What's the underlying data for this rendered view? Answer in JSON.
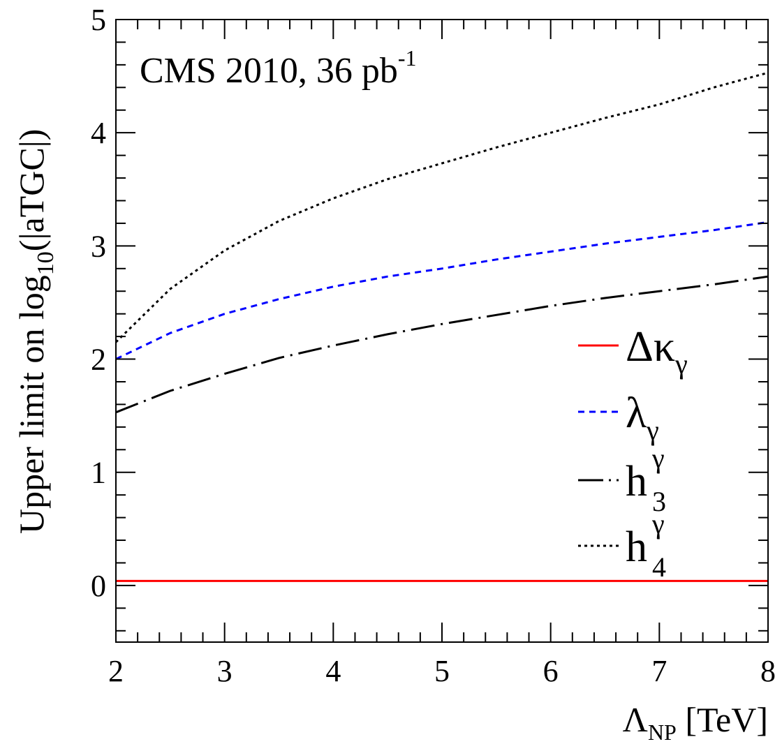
{
  "chart_data": {
    "type": "line",
    "annotation": {
      "main": "CMS 2010, 36 pb",
      "superscript": "-1"
    },
    "xlabel": {
      "main": "Λ",
      "sub": "NP",
      "unit": " [TeV]"
    },
    "ylabel": {
      "main": "Upper limit on log",
      "sub": "10",
      "rest": "(|aTGC|)"
    },
    "xlim": [
      2,
      8
    ],
    "ylim": [
      -0.5,
      5
    ],
    "x_ticks": [
      "2",
      "3",
      "4",
      "5",
      "6",
      "7",
      "8"
    ],
    "y_ticks": [
      "0",
      "1",
      "2",
      "3",
      "4",
      "5"
    ],
    "grid": false,
    "legend_position": "right",
    "series": [
      {
        "name": "Δκγ",
        "legend": {
          "main": "Δκ",
          "sub": "γ",
          "sup": ""
        },
        "color": "#ff0000",
        "style": "solid",
        "x": [
          2,
          8
        ],
        "y": [
          0.04,
          0.04
        ]
      },
      {
        "name": "λγ",
        "legend": {
          "main": "λ",
          "sub": "γ",
          "sup": ""
        },
        "color": "#0000ff",
        "style": "dashed",
        "x": [
          2,
          2.5,
          3,
          3.5,
          4,
          4.5,
          5,
          5.5,
          6,
          6.5,
          7,
          7.5,
          8
        ],
        "y": [
          2.0,
          2.23,
          2.4,
          2.53,
          2.64,
          2.73,
          2.8,
          2.88,
          2.95,
          3.02,
          3.08,
          3.14,
          3.21
        ]
      },
      {
        "name": "h3γ",
        "legend": {
          "main": "h",
          "sub": "3",
          "sup": "γ"
        },
        "color": "#000000",
        "style": "longdash",
        "x": [
          2,
          2.5,
          3,
          3.5,
          4,
          4.5,
          5,
          5.5,
          6,
          6.5,
          7,
          7.5,
          8
        ],
        "y": [
          1.53,
          1.72,
          1.87,
          2.01,
          2.12,
          2.22,
          2.31,
          2.39,
          2.47,
          2.54,
          2.6,
          2.66,
          2.73
        ]
      },
      {
        "name": "h4γ",
        "legend": {
          "main": "h",
          "sub": "4",
          "sup": "γ"
        },
        "color": "#000000",
        "style": "dotted",
        "x": [
          2,
          2.5,
          3,
          3.5,
          4,
          4.5,
          5,
          5.5,
          6,
          6.5,
          7,
          7.5,
          8
        ],
        "y": [
          2.15,
          2.62,
          2.96,
          3.22,
          3.42,
          3.59,
          3.73,
          3.87,
          4.0,
          4.13,
          4.25,
          4.4,
          4.53
        ]
      }
    ]
  }
}
